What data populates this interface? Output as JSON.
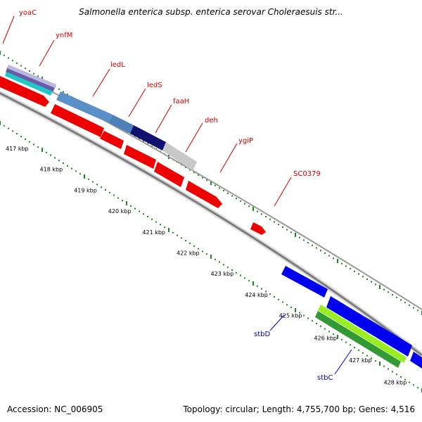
{
  "title": "Salmonella enterica subsp. enterica serovar Choleraesuis str...",
  "footer": {
    "accession": "Accession: NC_006905",
    "summary": "Topology: circular; Length: 4,755,700 bp; Genes: 4,516"
  },
  "colors": {
    "forward_label": "#cc0000",
    "reverse_label": "#0000cc",
    "backbone": "#8a8a8a",
    "tick_dots": "#1a8a1a",
    "red_cds": "#ee0000",
    "blue_cds": "#0000ee",
    "green_cds": "#339933",
    "lime_cds": "#99ee22",
    "steelblue_cds": "#5a8fc8",
    "navy_cds": "#101070",
    "gray_cds": "#c8c8c8"
  },
  "axis": {
    "unit": "kbp",
    "ticks": [
      {
        "kbp": 417,
        "label": "417 kbp"
      },
      {
        "kbp": 418,
        "label": "418 kbp"
      },
      {
        "kbp": 419,
        "label": "419 kbp"
      },
      {
        "kbp": 420,
        "label": "420 kbp"
      },
      {
        "kbp": 421,
        "label": "421 kbp"
      },
      {
        "kbp": 422,
        "label": "422 kbp"
      },
      {
        "kbp": 423,
        "label": "423 kbp"
      },
      {
        "kbp": 424,
        "label": "424 kbp"
      },
      {
        "kbp": 425,
        "label": "425 kbp"
      },
      {
        "kbp": 426,
        "label": "426 kbp"
      },
      {
        "kbp": 427,
        "label": "427 kbp"
      },
      {
        "kbp": 428,
        "label": "428 kbp"
      }
    ]
  },
  "genes": {
    "forward": [
      "yoaC",
      "ynfM",
      "ledL",
      "ledS",
      "faaH",
      "deh",
      "ygiP",
      "SC0379"
    ],
    "reverse": [
      "stbD",
      "stbC"
    ]
  }
}
